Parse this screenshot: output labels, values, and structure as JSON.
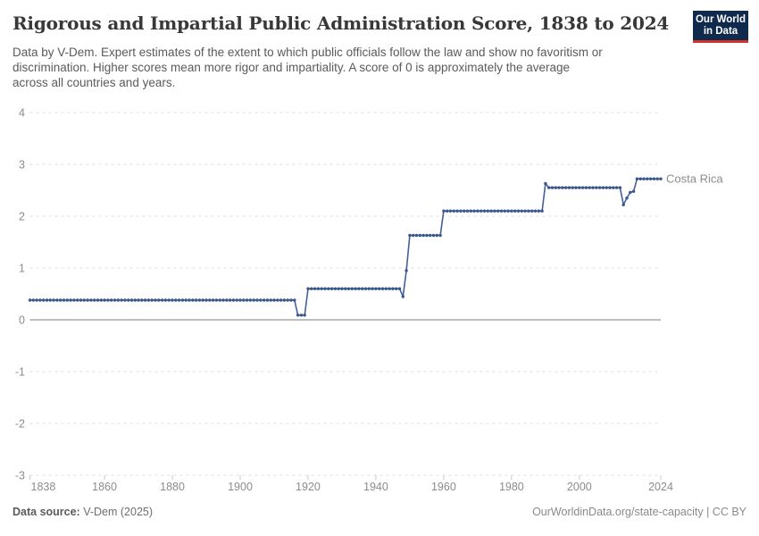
{
  "header": {
    "title": "Rigorous and Impartial Public Administration Score, 1838 to 2024",
    "subtitle_lines": [
      "Data by V-Dem. Expert estimates of the extent to which public officials follow the law and show no favoritism or",
      "discrimination. Higher scores mean more rigor and impartiality. A score of 0 is approximately the average",
      "across all countries and years."
    ]
  },
  "logo": {
    "line1": "Our World",
    "line2": "in Data",
    "background_color": "#102a4e",
    "accent_color": "#d0342c"
  },
  "chart_data": {
    "type": "line",
    "entity_label": "Costa Rica",
    "series_color": "#3d5a8f",
    "line_color": "#44609a",
    "point_color": "#3a568c",
    "grid_color": "#dcdcdc",
    "zero_line_color": "#a9a9a9",
    "axis_label_color": "#8c8c8c",
    "xlim": [
      1838,
      2024
    ],
    "ylim": [
      -3,
      4
    ],
    "x_ticks": [
      1838,
      1860,
      1880,
      1900,
      1920,
      1940,
      1960,
      1980,
      2000,
      2024
    ],
    "y_ticks": [
      4,
      3,
      2,
      1,
      0,
      -1,
      -2,
      -3
    ],
    "grid": "dashed horizontal gridlines, solid line at 0, legend as end-of-line label",
    "steps": [
      {
        "from": 1838,
        "to": 1916,
        "value": 0.38
      },
      {
        "from": 1917,
        "to": 1919,
        "value": 0.09
      },
      {
        "from": 1920,
        "to": 1947,
        "value": 0.6
      },
      {
        "from": 1948,
        "to": 1948,
        "value": 0.45
      },
      {
        "from": 1949,
        "to": 1949,
        "value": 0.95
      },
      {
        "from": 1950,
        "to": 1959,
        "value": 1.63
      },
      {
        "from": 1960,
        "to": 1989,
        "value": 2.1
      },
      {
        "from": 1990,
        "to": 1990,
        "value": 2.63
      },
      {
        "from": 1991,
        "to": 2012,
        "value": 2.55
      },
      {
        "from": 2013,
        "to": 2013,
        "value": 2.22
      },
      {
        "from": 2014,
        "to": 2014,
        "value": 2.35
      },
      {
        "from": 2015,
        "to": 2015,
        "value": 2.46
      },
      {
        "from": 2016,
        "to": 2016,
        "value": 2.48
      },
      {
        "from": 2017,
        "to": 2024,
        "value": 2.72
      }
    ]
  },
  "footer": {
    "source_label": "Data source:",
    "source_value": "V-Dem (2025)",
    "credit": "OurWorldinData.org/state-capacity | CC BY"
  }
}
